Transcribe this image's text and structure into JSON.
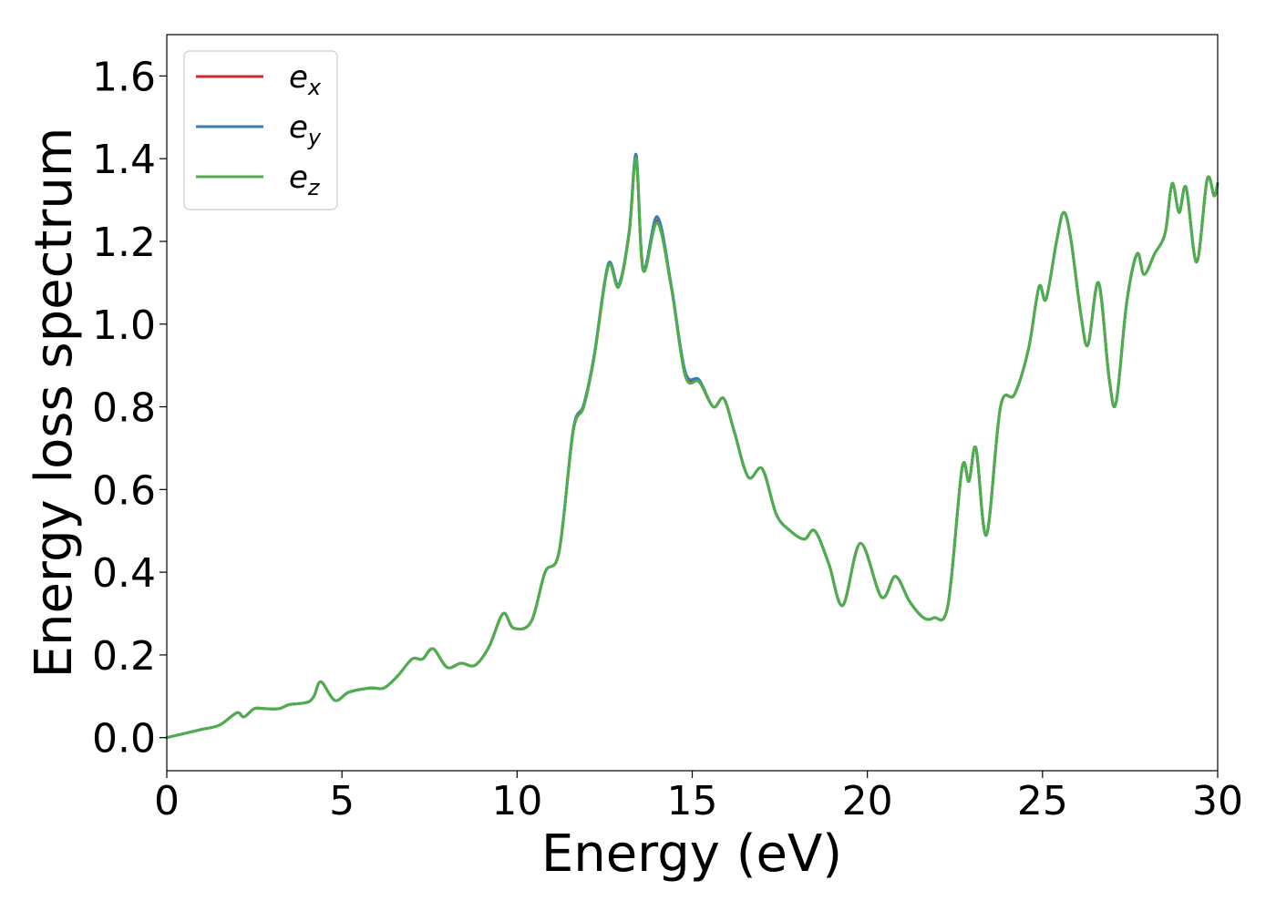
{
  "chart_data": {
    "type": "line",
    "title": "",
    "xlabel": "Energy (eV)",
    "ylabel": "Energy loss spectrum",
    "xlim": [
      0,
      30
    ],
    "ylim": [
      -0.08,
      1.7
    ],
    "xticks": [
      0,
      5,
      10,
      15,
      20,
      25,
      30
    ],
    "yticks": [
      0.0,
      0.2,
      0.4,
      0.6,
      0.8,
      1.0,
      1.2,
      1.4,
      1.6
    ],
    "xtick_labels": [
      "0",
      "5",
      "10",
      "15",
      "20",
      "25",
      "30"
    ],
    "ytick_labels": [
      "0.0",
      "0.2",
      "0.4",
      "0.6",
      "0.8",
      "1.0",
      "1.2",
      "1.4",
      "1.6"
    ],
    "grid": false,
    "legend": {
      "placement": "top-left"
    },
    "series": [
      {
        "name": "e_x",
        "base": "e",
        "sub": "x",
        "color": "#d62728",
        "x": [
          0,
          0.5,
          1.0,
          1.5,
          2.0,
          2.2,
          2.5,
          2.8,
          3.2,
          3.5,
          4.0,
          4.2,
          4.4,
          4.8,
          5.2,
          5.8,
          6.2,
          6.6,
          7.0,
          7.3,
          7.6,
          8.0,
          8.4,
          8.8,
          9.2,
          9.6,
          9.9,
          10.4,
          10.8,
          11.2,
          11.6,
          11.9,
          12.2,
          12.6,
          12.9,
          13.2,
          13.4,
          13.6,
          14.0,
          14.4,
          14.8,
          15.2,
          15.6,
          15.9,
          16.2,
          16.6,
          17.0,
          17.4,
          17.8,
          18.2,
          18.5,
          18.9,
          19.3,
          19.8,
          20.4,
          20.8,
          21.2,
          21.6,
          21.9,
          22.3,
          22.7,
          22.9,
          23.1,
          23.4,
          23.8,
          24.2,
          24.6,
          24.9,
          25.1,
          25.4,
          25.6,
          25.8,
          26.1,
          26.3,
          26.6,
          26.9,
          27.1,
          27.4,
          27.7,
          27.9,
          28.2,
          28.5,
          28.7,
          28.9,
          29.1,
          29.4,
          29.7,
          29.9,
          30.0
        ],
        "y": [
          0.0,
          0.01,
          0.02,
          0.03,
          0.06,
          0.05,
          0.07,
          0.07,
          0.07,
          0.08,
          0.085,
          0.1,
          0.135,
          0.09,
          0.11,
          0.12,
          0.12,
          0.15,
          0.19,
          0.19,
          0.215,
          0.17,
          0.18,
          0.175,
          0.22,
          0.3,
          0.265,
          0.28,
          0.4,
          0.45,
          0.74,
          0.8,
          0.92,
          1.14,
          1.09,
          1.22,
          1.4,
          1.13,
          1.25,
          1.09,
          0.88,
          0.86,
          0.8,
          0.82,
          0.74,
          0.63,
          0.65,
          0.54,
          0.5,
          0.48,
          0.5,
          0.42,
          0.32,
          0.47,
          0.34,
          0.39,
          0.33,
          0.29,
          0.29,
          0.32,
          0.65,
          0.62,
          0.7,
          0.49,
          0.8,
          0.83,
          0.94,
          1.09,
          1.06,
          1.2,
          1.27,
          1.21,
          1.02,
          0.95,
          1.1,
          0.87,
          0.81,
          1.05,
          1.17,
          1.12,
          1.17,
          1.22,
          1.34,
          1.27,
          1.33,
          1.15,
          1.35,
          1.31,
          1.34
        ]
      },
      {
        "name": "e_y",
        "base": "e",
        "sub": "y",
        "color": "#377eb8",
        "x": [
          0,
          0.5,
          1.0,
          1.5,
          2.0,
          2.2,
          2.5,
          2.8,
          3.2,
          3.5,
          4.0,
          4.2,
          4.4,
          4.8,
          5.2,
          5.8,
          6.2,
          6.6,
          7.0,
          7.3,
          7.6,
          8.0,
          8.4,
          8.8,
          9.2,
          9.6,
          9.9,
          10.4,
          10.8,
          11.2,
          11.6,
          11.9,
          12.2,
          12.6,
          12.9,
          13.2,
          13.4,
          13.6,
          14.0,
          14.4,
          14.8,
          15.2,
          15.6,
          15.9,
          16.2,
          16.6,
          17.0,
          17.4,
          17.8,
          18.2,
          18.5,
          18.9,
          19.3,
          19.8,
          20.4,
          20.8,
          21.2,
          21.6,
          21.9,
          22.3,
          22.7,
          22.9,
          23.1,
          23.4,
          23.8,
          24.2,
          24.6,
          24.9,
          25.1,
          25.4,
          25.6,
          25.8,
          26.1,
          26.3,
          26.6,
          26.9,
          27.1,
          27.4,
          27.7,
          27.9,
          28.2,
          28.5,
          28.7,
          28.9,
          29.1,
          29.4,
          29.7,
          29.9,
          30.0
        ],
        "y": [
          0.0,
          0.01,
          0.02,
          0.03,
          0.06,
          0.05,
          0.07,
          0.07,
          0.07,
          0.08,
          0.085,
          0.1,
          0.135,
          0.09,
          0.11,
          0.12,
          0.12,
          0.15,
          0.19,
          0.19,
          0.215,
          0.17,
          0.18,
          0.175,
          0.22,
          0.3,
          0.265,
          0.28,
          0.4,
          0.45,
          0.745,
          0.805,
          0.925,
          1.145,
          1.095,
          1.225,
          1.41,
          1.135,
          1.26,
          1.095,
          0.885,
          0.865,
          0.8,
          0.82,
          0.74,
          0.63,
          0.65,
          0.54,
          0.5,
          0.48,
          0.5,
          0.42,
          0.32,
          0.47,
          0.34,
          0.39,
          0.33,
          0.29,
          0.29,
          0.32,
          0.65,
          0.62,
          0.7,
          0.49,
          0.8,
          0.83,
          0.94,
          1.09,
          1.06,
          1.2,
          1.27,
          1.21,
          1.02,
          0.95,
          1.1,
          0.87,
          0.81,
          1.05,
          1.17,
          1.12,
          1.17,
          1.22,
          1.34,
          1.27,
          1.33,
          1.15,
          1.35,
          1.31,
          1.34
        ]
      },
      {
        "name": "e_z",
        "base": "e",
        "sub": "z",
        "color": "#4daf4a",
        "x": [
          0,
          0.5,
          1.0,
          1.5,
          2.0,
          2.2,
          2.5,
          2.8,
          3.2,
          3.5,
          4.0,
          4.2,
          4.4,
          4.8,
          5.2,
          5.8,
          6.2,
          6.6,
          7.0,
          7.3,
          7.6,
          8.0,
          8.4,
          8.8,
          9.2,
          9.6,
          9.9,
          10.4,
          10.8,
          11.2,
          11.6,
          11.9,
          12.2,
          12.6,
          12.9,
          13.2,
          13.4,
          13.6,
          14.0,
          14.4,
          14.8,
          15.2,
          15.6,
          15.9,
          16.2,
          16.6,
          17.0,
          17.4,
          17.8,
          18.2,
          18.5,
          18.9,
          19.3,
          19.8,
          20.4,
          20.8,
          21.2,
          21.6,
          21.9,
          22.3,
          22.7,
          22.9,
          23.1,
          23.4,
          23.8,
          24.2,
          24.6,
          24.9,
          25.1,
          25.4,
          25.6,
          25.8,
          26.1,
          26.3,
          26.6,
          26.9,
          27.1,
          27.4,
          27.7,
          27.9,
          28.2,
          28.5,
          28.7,
          28.9,
          29.1,
          29.4,
          29.7,
          29.9,
          30.0
        ],
        "y": [
          0.0,
          0.01,
          0.02,
          0.03,
          0.06,
          0.05,
          0.07,
          0.07,
          0.07,
          0.08,
          0.085,
          0.1,
          0.135,
          0.09,
          0.11,
          0.12,
          0.12,
          0.15,
          0.19,
          0.19,
          0.215,
          0.17,
          0.18,
          0.175,
          0.22,
          0.3,
          0.265,
          0.28,
          0.4,
          0.45,
          0.74,
          0.8,
          0.92,
          1.14,
          1.09,
          1.22,
          1.4,
          1.13,
          1.245,
          1.09,
          0.875,
          0.86,
          0.8,
          0.82,
          0.74,
          0.63,
          0.65,
          0.54,
          0.5,
          0.48,
          0.5,
          0.42,
          0.32,
          0.47,
          0.34,
          0.39,
          0.33,
          0.29,
          0.29,
          0.32,
          0.65,
          0.62,
          0.7,
          0.49,
          0.8,
          0.83,
          0.94,
          1.09,
          1.06,
          1.2,
          1.27,
          1.21,
          1.02,
          0.95,
          1.1,
          0.87,
          0.81,
          1.05,
          1.17,
          1.12,
          1.17,
          1.22,
          1.34,
          1.27,
          1.33,
          1.15,
          1.35,
          1.31,
          1.34
        ]
      }
    ]
  }
}
